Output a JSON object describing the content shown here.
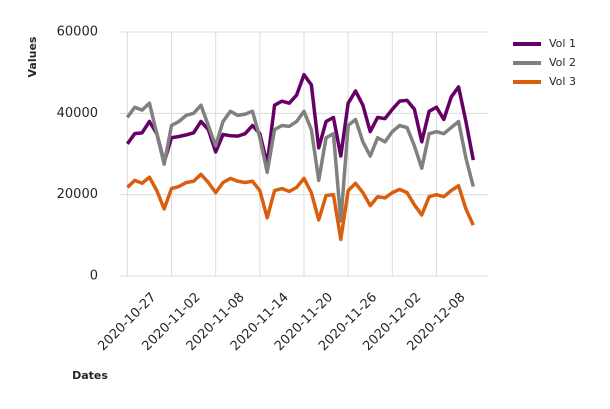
{
  "chart_data": {
    "type": "line",
    "xlabel": "Dates",
    "ylabel": "Values",
    "x": [
      "2020-10-27",
      "2020-10-28",
      "2020-10-29",
      "2020-10-30",
      "2020-10-31",
      "2020-11-01",
      "2020-11-02",
      "2020-11-03",
      "2020-11-04",
      "2020-11-05",
      "2020-11-06",
      "2020-11-07",
      "2020-11-08",
      "2020-11-09",
      "2020-11-10",
      "2020-11-11",
      "2020-11-12",
      "2020-11-13",
      "2020-11-14",
      "2020-11-15",
      "2020-11-16",
      "2020-11-17",
      "2020-11-18",
      "2020-11-19",
      "2020-11-20",
      "2020-11-21",
      "2020-11-22",
      "2020-11-23",
      "2020-11-24",
      "2020-11-25",
      "2020-11-26",
      "2020-11-27",
      "2020-11-28",
      "2020-11-29",
      "2020-11-30",
      "2020-12-01",
      "2020-12-02",
      "2020-12-03",
      "2020-12-04",
      "2020-12-05",
      "2020-12-06",
      "2020-12-07",
      "2020-12-08",
      "2020-12-09",
      "2020-12-10",
      "2020-12-11",
      "2020-12-12",
      "2020-12-13"
    ],
    "series": [
      {
        "name": "Vol 1",
        "color": "#660066",
        "values": [
          32500,
          35000,
          35200,
          38000,
          35000,
          28000,
          34000,
          34300,
          34700,
          35200,
          38000,
          36000,
          30500,
          34800,
          34500,
          34400,
          35000,
          37000,
          35000,
          27500,
          42000,
          43000,
          42500,
          44500,
          49500,
          47000,
          31500,
          38000,
          39000,
          29500,
          42500,
          45500,
          42000,
          35500,
          39000,
          38700,
          41000,
          43000,
          43200,
          41000,
          33000,
          40500,
          41500,
          38500,
          44000,
          46500,
          38000,
          28500
        ]
      },
      {
        "name": "Vol 2",
        "color": "#808080",
        "values": [
          39000,
          41500,
          40800,
          42500,
          35000,
          27500,
          37000,
          38000,
          39500,
          40000,
          42000,
          37000,
          32000,
          38000,
          40500,
          39500,
          39800,
          40500,
          34000,
          25500,
          36000,
          37000,
          36800,
          38000,
          40500,
          36000,
          23500,
          34000,
          35000,
          13500,
          37000,
          38500,
          33000,
          29500,
          34000,
          33000,
          35500,
          37000,
          36500,
          32000,
          26500,
          35000,
          35500,
          35000,
          36500,
          38000,
          29000,
          22000
        ]
      },
      {
        "name": "Vol 3",
        "color": "#d95f0e",
        "values": [
          21800,
          23500,
          22800,
          24300,
          21000,
          16500,
          21500,
          22000,
          23000,
          23300,
          25000,
          23000,
          20500,
          23000,
          24000,
          23300,
          23000,
          23300,
          21000,
          14300,
          21000,
          21500,
          20800,
          21800,
          24000,
          20500,
          13800,
          19800,
          20000,
          9000,
          21000,
          22800,
          20500,
          17300,
          19500,
          19200,
          20500,
          21300,
          20500,
          17500,
          15000,
          19500,
          20000,
          19500,
          21000,
          22200,
          16500,
          12500
        ]
      }
    ],
    "xlim": [
      "2020-10-26",
      "2020-12-15"
    ],
    "xticks": [
      "2020-10-27",
      "2020-11-02",
      "2020-11-08",
      "2020-11-14",
      "2020-11-20",
      "2020-11-26",
      "2020-12-02",
      "2020-12-08"
    ],
    "ylim": [
      0,
      60000
    ],
    "yticks": [
      0,
      20000,
      40000,
      60000
    ],
    "grid": true,
    "legend": "upper right"
  }
}
